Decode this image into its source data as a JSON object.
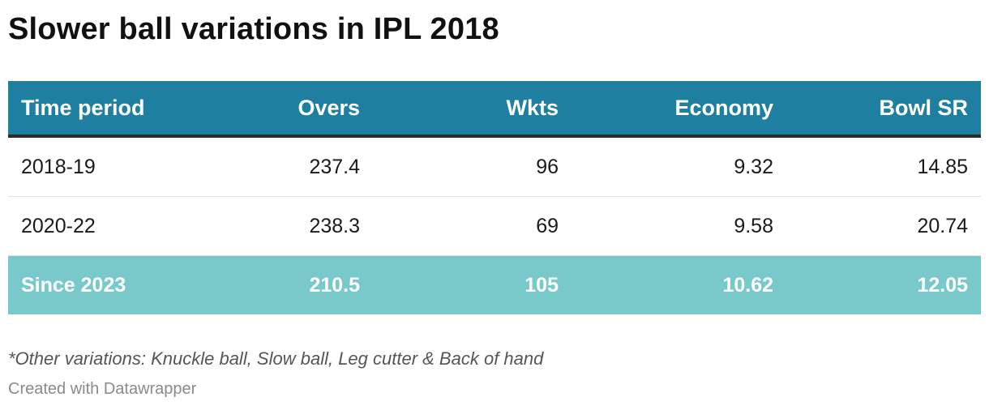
{
  "chart_data": {
    "type": "table",
    "title": "Slower ball variations in IPL 2018",
    "columns": [
      "Time period",
      "Overs",
      "Wkts",
      "Economy",
      "Bowl SR"
    ],
    "rows": [
      [
        "2018-19",
        "237.4",
        "96",
        "9.32",
        "14.85"
      ],
      [
        "2020-22",
        "238.3",
        "69",
        "9.58",
        "20.74"
      ],
      [
        "Since 2023",
        "210.5",
        "105",
        "10.62",
        "12.05"
      ]
    ],
    "highlighted_row": "Since 2023",
    "colors": {
      "header_bg": "#1f7fa0",
      "highlight_bg": "#79c9ca",
      "header_rule": "#2b2b2b"
    }
  },
  "footnote": "*Other variations: Knuckle ball, Slow ball, Leg cutter & Back of hand",
  "credit": "Created with Datawrapper"
}
